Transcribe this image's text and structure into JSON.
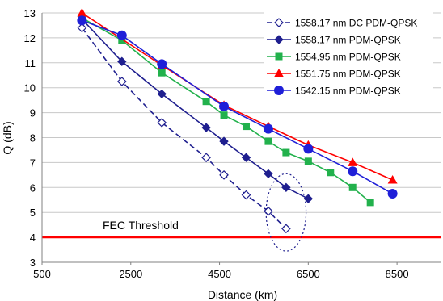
{
  "chart_data": {
    "type": "line",
    "title": "",
    "xlabel": "Distance (km)",
    "ylabel": "Q (dB)",
    "xlim": [
      500,
      9500
    ],
    "ylim": [
      3,
      13
    ],
    "xticks": [
      500,
      2500,
      4500,
      6500,
      8500
    ],
    "yticks": [
      3,
      4,
      5,
      6,
      7,
      8,
      9,
      10,
      11,
      12,
      13
    ],
    "grid": "horizontal",
    "legend_position": "top-right",
    "series": [
      {
        "name": "1558.17 nm DC PDM-QPSK",
        "color": "#1f1f8f",
        "marker": "diamond-open",
        "line_style": "dashed",
        "x": [
          1400,
          2300,
          3200,
          4200,
          4600,
          5100,
          5600,
          6000
        ],
        "y": [
          12.4,
          10.25,
          8.6,
          7.2,
          6.5,
          5.7,
          5.05,
          4.35
        ]
      },
      {
        "name": "1558.17 nm PDM-QPSK",
        "color": "#1f1f8f",
        "marker": "diamond",
        "line_style": "solid",
        "x": [
          1400,
          2300,
          3200,
          4200,
          4600,
          5100,
          5600,
          6000,
          6500
        ],
        "y": [
          12.75,
          11.05,
          9.75,
          8.4,
          7.85,
          7.2,
          6.55,
          6.0,
          5.55
        ]
      },
      {
        "name": "1554.95 nm PDM-QPSK",
        "color": "#22b14c",
        "marker": "square",
        "line_style": "solid",
        "x": [
          1400,
          2300,
          3200,
          4200,
          4600,
          5100,
          5600,
          6000,
          6500,
          7000,
          7500,
          7900
        ],
        "y": [
          12.8,
          11.9,
          10.6,
          9.45,
          8.9,
          8.45,
          7.85,
          7.4,
          7.05,
          6.6,
          6.0,
          5.4
        ]
      },
      {
        "name": "1551.75 nm PDM-QPSK",
        "color": "#ff0000",
        "marker": "triangle",
        "line_style": "solid",
        "x": [
          1400,
          3200,
          4600,
          5600,
          6500,
          7500,
          8400
        ],
        "y": [
          13.0,
          10.9,
          9.3,
          8.45,
          7.7,
          7.0,
          6.3
        ]
      },
      {
        "name": "1542.15 nm PDM-QPSK",
        "color": "#1f1fd8",
        "marker": "circle",
        "line_style": "solid",
        "x": [
          1400,
          2300,
          3200,
          4600,
          5600,
          6500,
          7500,
          8400
        ],
        "y": [
          12.7,
          12.1,
          10.95,
          9.25,
          8.35,
          7.55,
          6.65,
          5.75
        ]
      }
    ],
    "annotations": [
      {
        "text": "FEC Threshold",
        "type": "hline",
        "y": 4,
        "color": "#ff0000"
      }
    ],
    "highlight_ellipse": {
      "x_center": 6000,
      "y_center": 5.0,
      "x_radius": 450,
      "y_radius": 1.55
    }
  }
}
